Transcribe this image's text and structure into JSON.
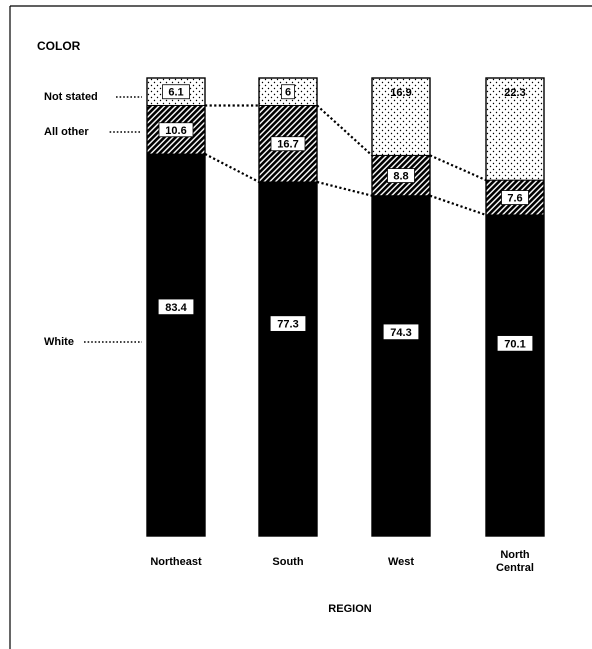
{
  "chart_data": {
    "type": "bar",
    "stacked": "percent",
    "title": "COLOR",
    "xlabel": "REGION",
    "ylabel": "",
    "ylim": [
      0,
      100
    ],
    "grid": false,
    "legend": "left-side labels with dotted leaders",
    "categories": [
      "Northeast",
      "South",
      "West",
      "North\nCentral"
    ],
    "series": [
      {
        "name": "White",
        "values": [
          83.4,
          77.3,
          74.3,
          70.1
        ],
        "fill": "solid-black"
      },
      {
        "name": "All other",
        "values": [
          10.6,
          16.7,
          8.8,
          7.6
        ],
        "fill": "diagonal-hatch"
      },
      {
        "name": "Not stated",
        "values": [
          6.1,
          6.0,
          16.9,
          22.3
        ],
        "fill": "stipple-white"
      }
    ]
  },
  "colors": {
    "ink": "#000000",
    "paper": "#ffffff"
  }
}
